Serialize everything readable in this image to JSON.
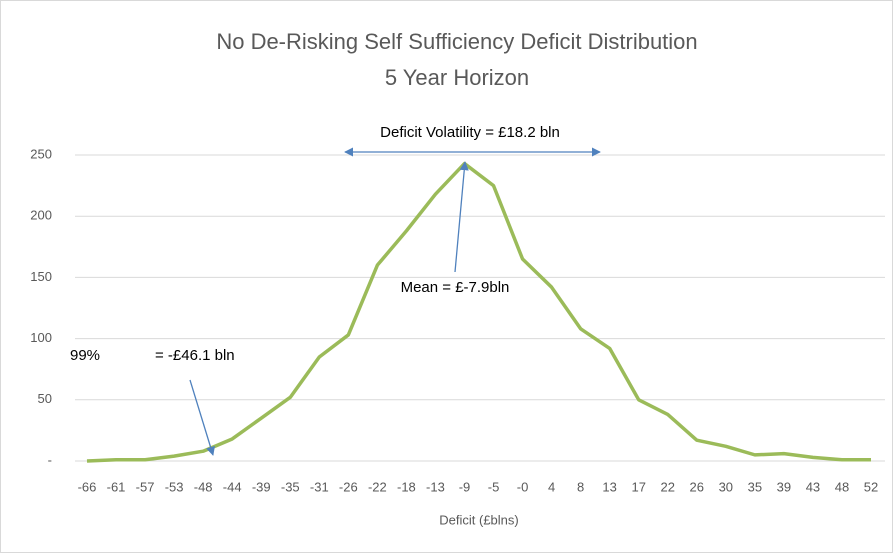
{
  "chart_data": {
    "type": "line",
    "title": "No De-Risking Self Sufficiency Deficit Distribution",
    "subtitle": "5 Year Horizon",
    "x_label": "Deficit (£blns)",
    "annotations": [
      "Deficit Volatility = £18.2 bln",
      "Mean = £-7.9bln",
      "99%",
      "= -£46.1 bln"
    ],
    "categories": [
      "-66",
      "-61",
      "-57",
      "-53",
      "-48",
      "-44",
      "-39",
      "-35",
      "-31",
      "-26",
      "-22",
      "-18",
      "-13",
      "-9",
      "-5",
      "-0",
      "4",
      "8",
      "13",
      "17",
      "22",
      "26",
      "30",
      "35",
      "39",
      "43",
      "48",
      "52"
    ],
    "series": [
      {
        "name": "Deficit",
        "color": "#9bbb59",
        "values": [
          0,
          1,
          1,
          4,
          8,
          18,
          35,
          52,
          85,
          103,
          160,
          188,
          218,
          243,
          225,
          165,
          142,
          108,
          92,
          50,
          38,
          17,
          12,
          5,
          6,
          3,
          1,
          1
        ]
      }
    ],
    "ylim": [
      0,
      250
    ],
    "yticks": [
      {
        "value": 0,
        "label": "-"
      },
      50,
      100,
      150,
      200,
      250
    ],
    "grid": true
  }
}
